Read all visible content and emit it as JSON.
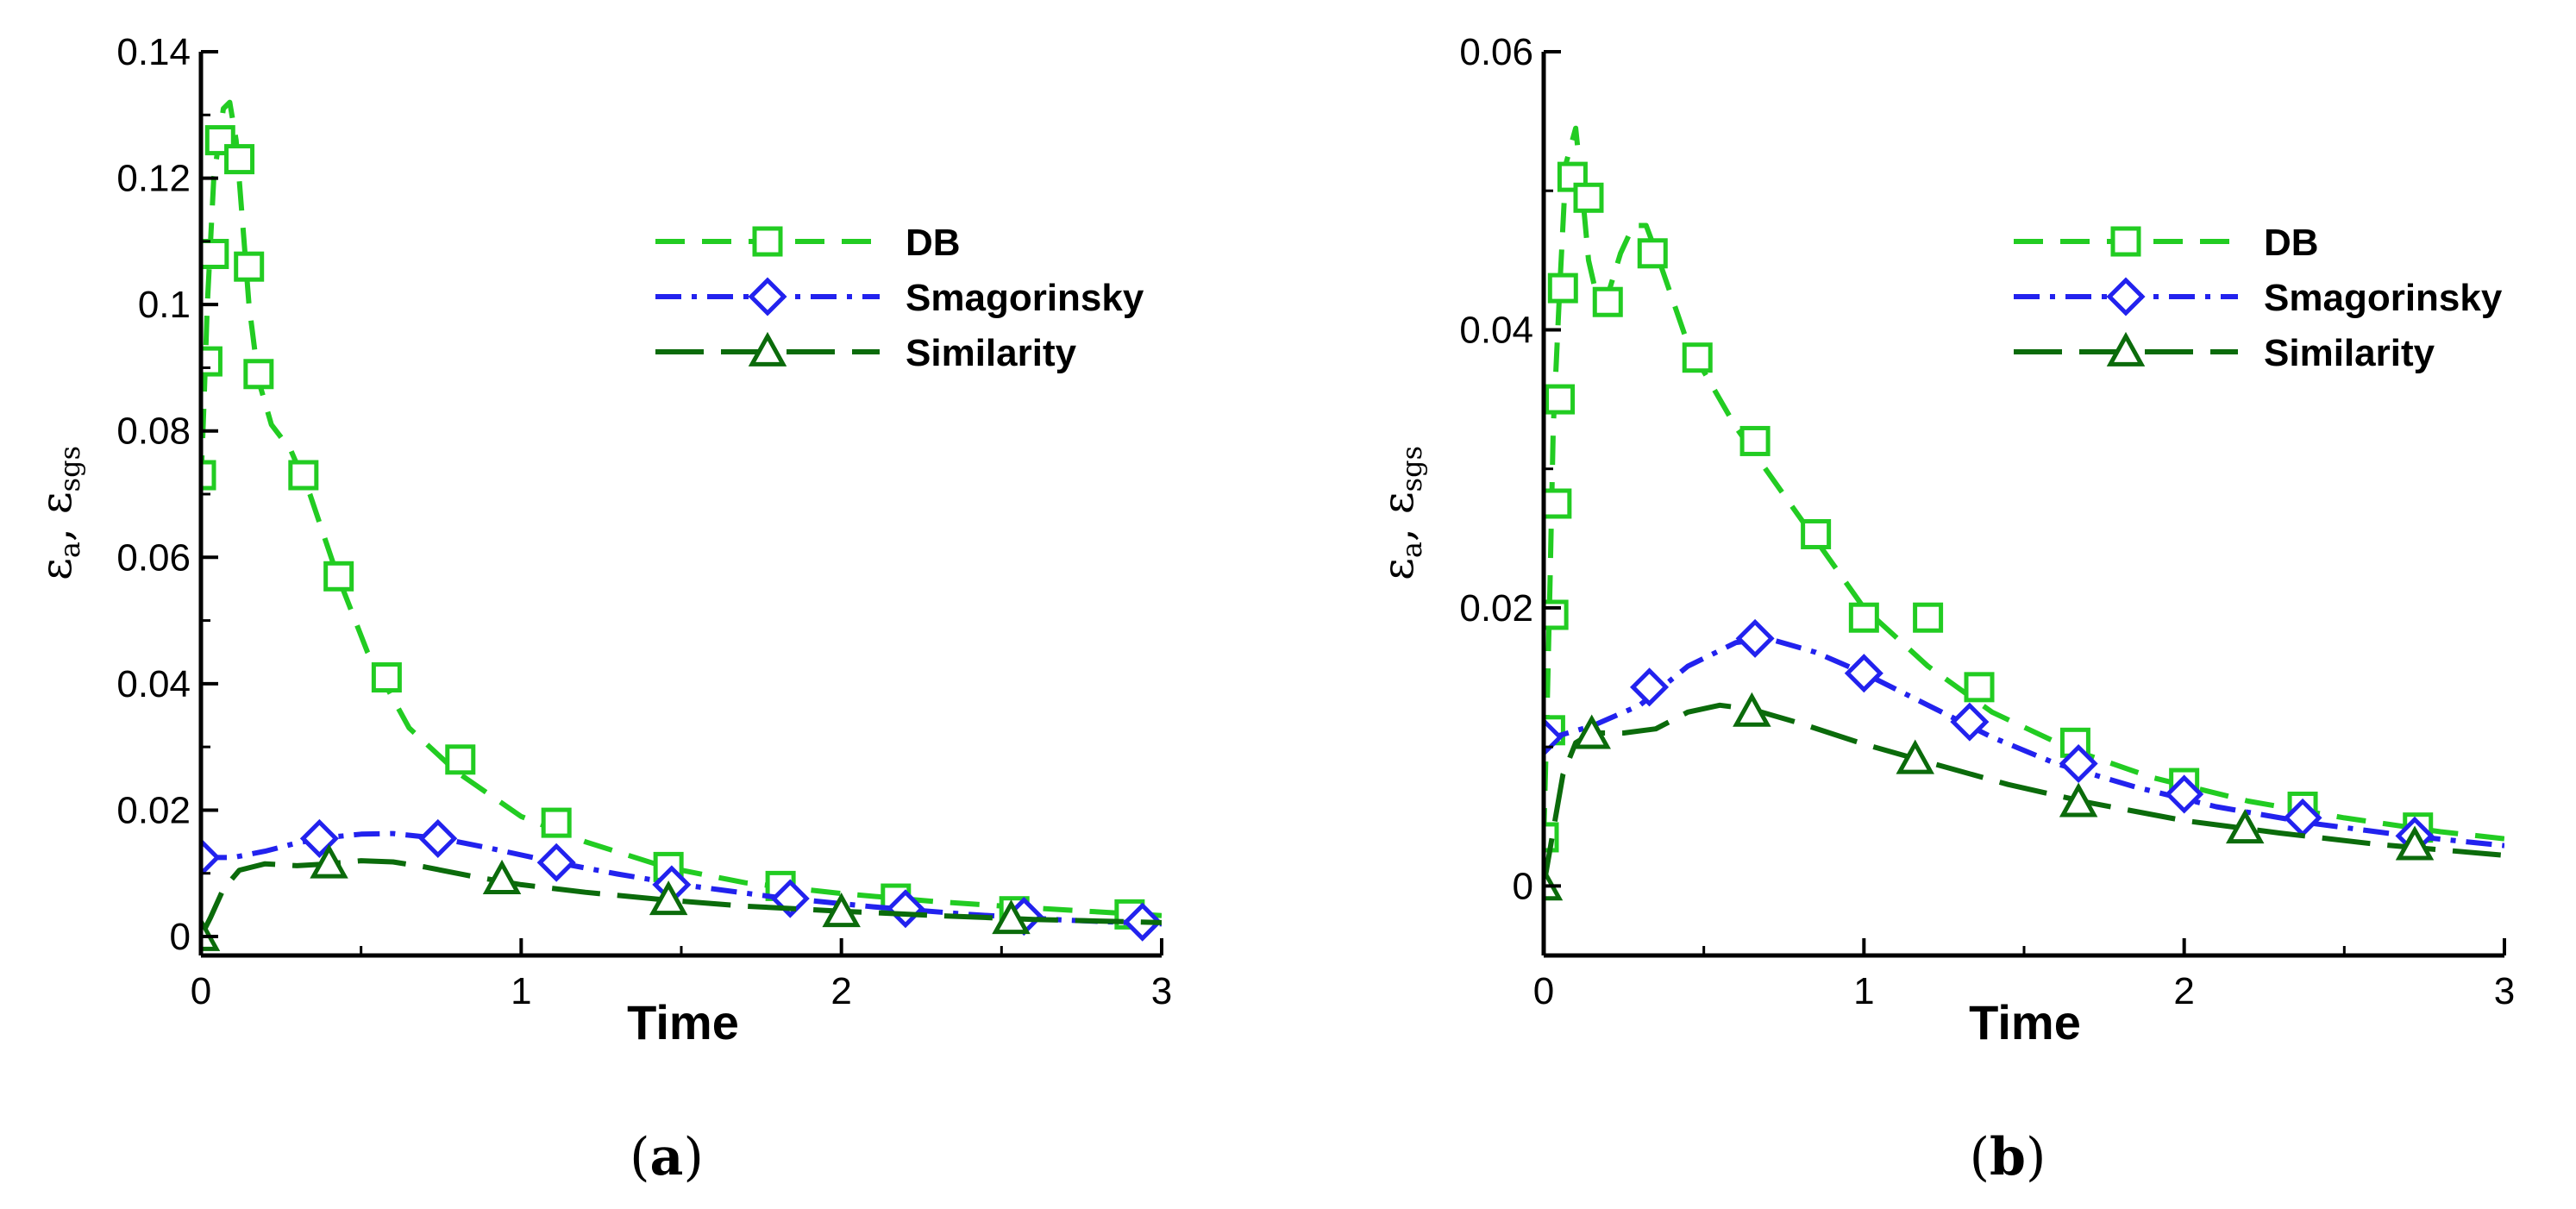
{
  "colors": {
    "db": "#22cc22",
    "smagorinsky": "#2222ee",
    "similarity": "#0b6b0b",
    "axis": "#000000"
  },
  "chart_data": [
    {
      "type": "line",
      "caption": "a",
      "xlabel": "Time",
      "ylabel": {
        "base": "ε",
        "sub1": "a",
        "sep": ", ",
        "sub2": "sgs"
      },
      "xlim": [
        0,
        3
      ],
      "ylim": [
        -0.003,
        0.14
      ],
      "xticks": [
        "0",
        "1",
        "2",
        "3"
      ],
      "yticks": [
        "0",
        "0.02",
        "0.04",
        "0.06",
        "0.08",
        "0.1",
        "0.12",
        "0.14"
      ],
      "legend_position": "top-right",
      "series": [
        {
          "name": "DB",
          "style": "dash",
          "marker": "square",
          "line_x": [
            0.0,
            0.01,
            0.02,
            0.04,
            0.07,
            0.09,
            0.11,
            0.13,
            0.15,
            0.18,
            0.22,
            0.28,
            0.34,
            0.42,
            0.52,
            0.65,
            0.8,
            1.0,
            1.2,
            1.45,
            1.7,
            2.0,
            2.3,
            2.6,
            2.9,
            3.0
          ],
          "line_y": [
            0.0715,
            0.085,
            0.1,
            0.12,
            0.131,
            0.132,
            0.126,
            0.113,
            0.1,
            0.088,
            0.081,
            0.077,
            0.07,
            0.058,
            0.045,
            0.033,
            0.026,
            0.019,
            0.015,
            0.011,
            0.0085,
            0.0068,
            0.0055,
            0.0045,
            0.0036,
            0.0033
          ],
          "marker_x": [
            0.0,
            0.02,
            0.04,
            0.06,
            0.12,
            0.15,
            0.18,
            0.32,
            0.43,
            0.58,
            0.81,
            1.11,
            1.46,
            1.81,
            2.17,
            2.54,
            2.9
          ],
          "marker_y": [
            0.073,
            0.091,
            0.108,
            0.126,
            0.123,
            0.106,
            0.089,
            0.073,
            0.057,
            0.041,
            0.028,
            0.018,
            0.011,
            0.008,
            0.006,
            0.004,
            0.0035
          ]
        },
        {
          "name": "Smagorinsky",
          "style": "dashdot",
          "marker": "diamond",
          "line_x": [
            0.0,
            0.1,
            0.2,
            0.3,
            0.4,
            0.5,
            0.6,
            0.75,
            0.9,
            1.1,
            1.3,
            1.5,
            1.8,
            2.1,
            2.4,
            2.7,
            3.0
          ],
          "line_y": [
            0.0125,
            0.0125,
            0.0135,
            0.0148,
            0.0157,
            0.0162,
            0.0163,
            0.0155,
            0.014,
            0.0118,
            0.0099,
            0.0082,
            0.0062,
            0.0047,
            0.0035,
            0.0026,
            0.002
          ],
          "marker_x": [
            0.0,
            0.37,
            0.74,
            1.11,
            1.47,
            1.84,
            2.2,
            2.57,
            2.94
          ],
          "marker_y": [
            0.0125,
            0.0155,
            0.0155,
            0.0117,
            0.0082,
            0.006,
            0.0044,
            0.0032,
            0.0023
          ]
        },
        {
          "name": "Similarity",
          "style": "longdash",
          "marker": "triangle",
          "line_x": [
            0.0,
            0.03,
            0.07,
            0.12,
            0.2,
            0.3,
            0.4,
            0.5,
            0.6,
            0.7,
            0.85,
            1.0,
            1.2,
            1.45,
            1.7,
            2.0,
            2.3,
            2.6,
            3.0
          ],
          "line_y": [
            0.0,
            0.003,
            0.0075,
            0.0105,
            0.0115,
            0.0112,
            0.0115,
            0.012,
            0.0118,
            0.011,
            0.0095,
            0.0082,
            0.007,
            0.0058,
            0.0048,
            0.004,
            0.0033,
            0.0027,
            0.0022
          ],
          "marker_x": [
            0.0,
            0.4,
            0.94,
            1.46,
            2.0,
            2.53
          ],
          "marker_y": [
            0.0,
            0.0115,
            0.009,
            0.0057,
            0.0038,
            0.0027
          ]
        }
      ]
    },
    {
      "type": "line",
      "caption": "b",
      "xlabel": "Time",
      "ylabel": {
        "base": "ε",
        "sub1": "a",
        "sep": ", ",
        "sub2": "sgs"
      },
      "xlim": [
        0,
        3
      ],
      "ylim": [
        -0.005,
        0.06
      ],
      "xticks": [
        "0",
        "1",
        "2",
        "3"
      ],
      "yticks": [
        "0",
        "0.02",
        "0.04",
        "0.06"
      ],
      "legend_position": "top-right",
      "series": [
        {
          "name": "DB",
          "style": "dash",
          "marker": "square",
          "line_x": [
            0.0,
            0.01,
            0.02,
            0.03,
            0.05,
            0.07,
            0.1,
            0.12,
            0.14,
            0.17,
            0.2,
            0.24,
            0.28,
            0.32,
            0.36,
            0.45,
            0.6,
            0.8,
            1.0,
            1.2,
            1.4,
            1.65,
            1.9,
            2.2,
            2.5,
            2.8,
            3.0
          ],
          "line_y": [
            0.0035,
            0.012,
            0.022,
            0.033,
            0.043,
            0.052,
            0.0545,
            0.05,
            0.045,
            0.042,
            0.0425,
            0.0455,
            0.0475,
            0.0475,
            0.045,
            0.039,
            0.033,
            0.0265,
            0.02,
            0.0158,
            0.0125,
            0.0098,
            0.0078,
            0.0061,
            0.0049,
            0.0039,
            0.0034
          ],
          "marker_x": [
            0.0,
            0.02,
            0.03,
            0.04,
            0.05,
            0.06,
            0.09,
            0.14,
            0.2,
            0.34,
            0.48,
            0.66,
            0.85,
            1.0,
            1.2,
            1.36,
            1.66,
            2.0,
            2.37,
            2.73
          ],
          "marker_y": [
            0.0035,
            0.0112,
            0.0195,
            0.0275,
            0.035,
            0.043,
            0.051,
            0.0495,
            0.042,
            0.0455,
            0.038,
            0.032,
            0.0253,
            0.0193,
            0.0193,
            0.0143,
            0.0103,
            0.0074,
            0.0057,
            0.0042
          ]
        },
        {
          "name": "Smagorinsky",
          "style": "dashdot",
          "marker": "diamond",
          "line_x": [
            0.0,
            0.15,
            0.3,
            0.45,
            0.6,
            0.7,
            0.85,
            1.0,
            1.2,
            1.4,
            1.6,
            1.85,
            2.1,
            2.4,
            2.7,
            3.0
          ],
          "line_y": [
            0.0105,
            0.0115,
            0.013,
            0.0158,
            0.0175,
            0.0178,
            0.0168,
            0.0153,
            0.013,
            0.0107,
            0.0088,
            0.0071,
            0.0057,
            0.0045,
            0.0036,
            0.0029
          ],
          "marker_x": [
            0.0,
            0.33,
            0.66,
            1.0,
            1.33,
            1.67,
            2.0,
            2.37,
            2.72
          ],
          "marker_y": [
            0.0107,
            0.0143,
            0.0178,
            0.0153,
            0.0118,
            0.0088,
            0.0066,
            0.0049,
            0.0036
          ]
        },
        {
          "name": "Similarity",
          "style": "longdash",
          "marker": "triangle",
          "line_x": [
            0.0,
            0.03,
            0.06,
            0.1,
            0.15,
            0.25,
            0.35,
            0.45,
            0.55,
            0.65,
            0.8,
            1.0,
            1.2,
            1.45,
            1.7,
            2.0,
            2.3,
            2.6,
            3.0
          ],
          "line_y": [
            0.0,
            0.004,
            0.008,
            0.0103,
            0.011,
            0.011,
            0.0113,
            0.0125,
            0.013,
            0.0127,
            0.0117,
            0.0102,
            0.0089,
            0.0073,
            0.006,
            0.0047,
            0.0038,
            0.003,
            0.0022
          ],
          "marker_x": [
            0.0,
            0.15,
            0.65,
            1.16,
            1.67,
            2.19,
            2.72
          ],
          "marker_y": [
            0.0,
            0.0109,
            0.0125,
            0.0091,
            0.006,
            0.0041,
            0.0029
          ]
        }
      ]
    }
  ]
}
